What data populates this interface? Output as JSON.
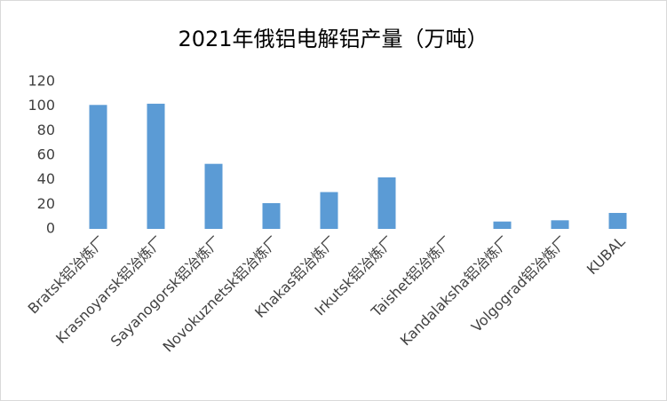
{
  "chart_data": {
    "type": "bar",
    "title": "2021年俄铝电解铝产量（万吨）",
    "categories": [
      "Bratsk铝冶炼厂",
      "Krasnoyarsk铝冶炼厂",
      "Sayanogorsk铝冶炼厂",
      "Novokuznetsk铝冶炼厂",
      "Khakas铝冶炼厂",
      "Irkutsk铝冶炼厂",
      "Taishet铝冶炼厂",
      "Kandalaksha铝冶炼厂",
      "Volgograd铝冶炼厂",
      "KUBAL"
    ],
    "values": [
      101,
      102,
      53,
      21,
      30,
      42,
      0,
      6,
      7,
      13
    ],
    "color": "#5b9bd5",
    "ylim": [
      0,
      120
    ],
    "yticks": [
      0,
      20,
      40,
      60,
      80,
      100,
      120
    ],
    "grid": false
  }
}
